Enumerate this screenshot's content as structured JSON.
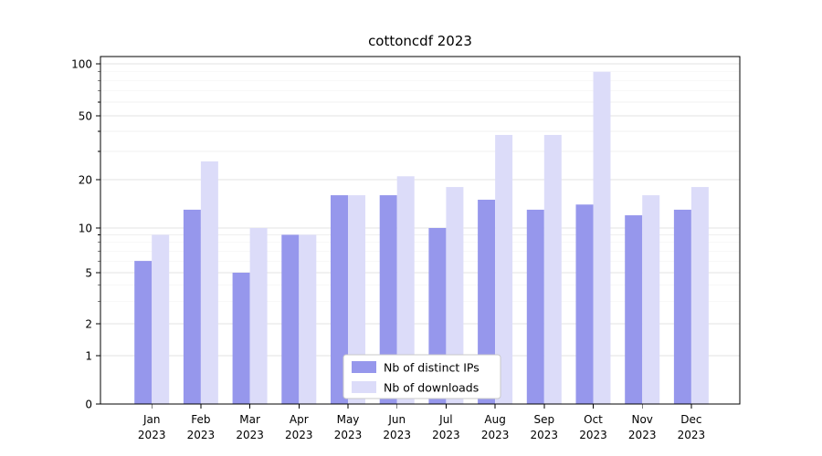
{
  "chart_data": {
    "type": "bar",
    "title": "cottoncdf 2023",
    "categories": [
      "Jan",
      "Feb",
      "Mar",
      "Apr",
      "May",
      "Jun",
      "Jul",
      "Aug",
      "Sep",
      "Oct",
      "Nov",
      "Dec"
    ],
    "year": "2023",
    "series": [
      {
        "name": "Nb of distinct IPs",
        "color": "#9697ec",
        "values": [
          6,
          13,
          5,
          9,
          16,
          16,
          10,
          15,
          13,
          14,
          12,
          13
        ]
      },
      {
        "name": "Nb of downloads",
        "color": "#dcdcf9",
        "values": [
          9,
          26,
          10,
          9,
          16,
          21,
          18,
          38,
          38,
          90,
          16,
          18
        ]
      }
    ],
    "yticks": [
      0,
      1,
      2,
      5,
      10,
      20,
      50,
      100
    ],
    "minor_yticks": [
      3,
      4,
      6,
      7,
      8,
      9,
      30,
      40,
      60,
      70,
      80,
      90
    ],
    "ylim": [
      0,
      100
    ],
    "scale": "symlog",
    "grid": "horizontal",
    "legend_position": "lower center"
  },
  "colors": {
    "background": "#ffffff",
    "grid_major": "#e3e3e3",
    "grid_minor": "#f0f0f0",
    "axis": "#000000",
    "tick_label": "#000000",
    "legend_border": "#c9c9c9",
    "legend_bg": "#ffffff"
  }
}
